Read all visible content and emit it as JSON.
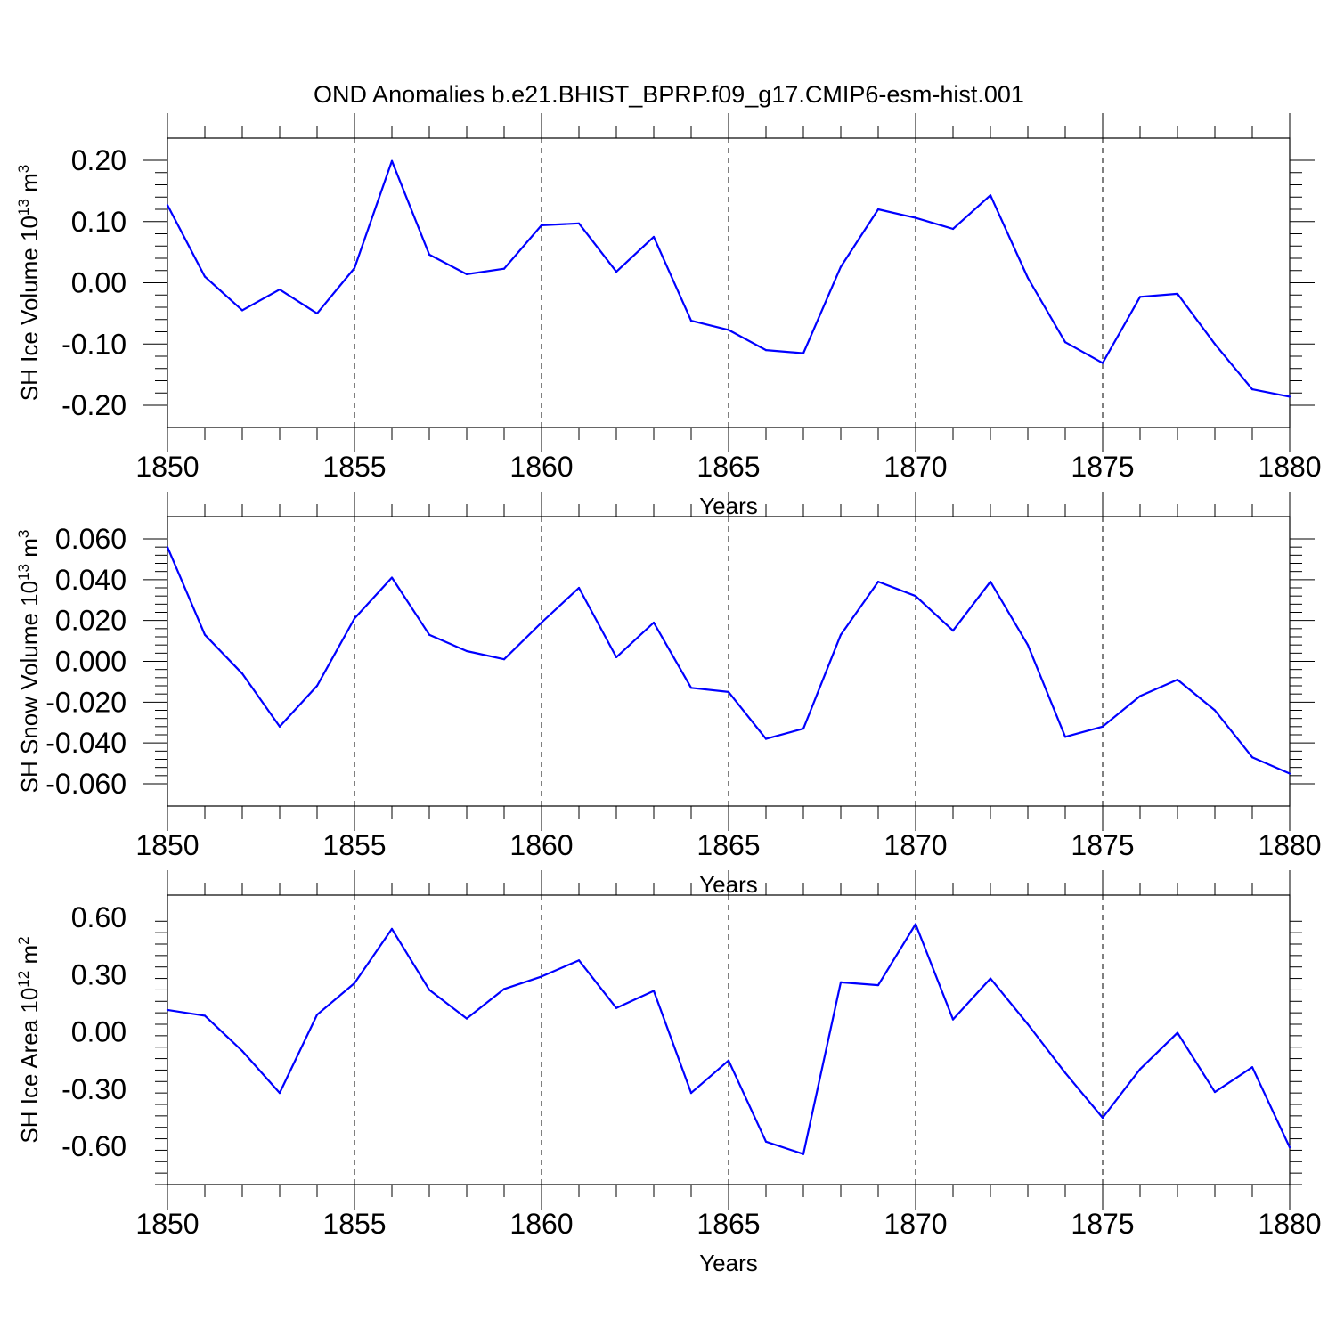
{
  "title": "OND Anomalies b.e21.BHIST_BPRP.f09_g17.CMIP6-esm-hist.001",
  "chart_data": [
    {
      "type": "line",
      "xlabel": "Years",
      "ylabel": {
        "text": "SH Ice Volume 10",
        "sup": "13",
        "unit": " m",
        "unit_sup": "3"
      },
      "xlim": [
        1850,
        1880
      ],
      "ylim": [
        -0.2,
        0.2
      ],
      "grid": "vertical dashed at x ticks",
      "yticks": [
        0.2,
        0.1,
        0.0,
        -0.1,
        -0.2
      ],
      "yticklabels": [
        "0.20",
        "0.10",
        "0.00",
        "-0.10",
        "-0.20"
      ],
      "xticks": [
        1850,
        1855,
        1860,
        1865,
        1870,
        1875,
        1880
      ],
      "xticklabels": [
        "1850",
        "1855",
        "1860",
        "1865",
        "1870",
        "1875",
        "1880"
      ],
      "line_color": "#0000ff",
      "x": [
        1850,
        1851,
        1852,
        1853,
        1854,
        1855,
        1856,
        1857,
        1858,
        1859,
        1860,
        1861,
        1862,
        1863,
        1864,
        1865,
        1866,
        1867,
        1868,
        1869,
        1870,
        1871,
        1872,
        1873,
        1874,
        1875,
        1876,
        1877,
        1878,
        1879,
        1880
      ],
      "y": [
        0.127,
        0.01,
        -0.045,
        -0.011,
        -0.05,
        0.024,
        0.199,
        0.046,
        0.014,
        0.023,
        0.094,
        0.097,
        0.018,
        0.075,
        -0.062,
        -0.077,
        -0.11,
        -0.115,
        0.026,
        0.12,
        0.106,
        0.088,
        0.143,
        0.008,
        -0.097,
        -0.131,
        -0.023,
        -0.018,
        -0.1,
        -0.174,
        -0.186
      ]
    },
    {
      "type": "line",
      "xlabel": "Years",
      "ylabel": {
        "text": "SH Snow Volume 10",
        "sup": "13",
        "unit": " m",
        "unit_sup": "3"
      },
      "xlim": [
        1850,
        1880
      ],
      "ylim": [
        -0.06,
        0.06
      ],
      "grid": "vertical dashed at x ticks",
      "yticks": [
        0.06,
        0.04,
        0.02,
        0.0,
        -0.02,
        -0.04,
        -0.06
      ],
      "yticklabels": [
        "0.060",
        "0.040",
        "0.020",
        "0.000",
        "-0.020",
        "-0.040",
        "-0.060"
      ],
      "xticks": [
        1850,
        1855,
        1860,
        1865,
        1870,
        1875,
        1880
      ],
      "xticklabels": [
        "1850",
        "1855",
        "1860",
        "1865",
        "1870",
        "1875",
        "1880"
      ],
      "line_color": "#0000ff",
      "x": [
        1850,
        1851,
        1852,
        1853,
        1854,
        1855,
        1856,
        1857,
        1858,
        1859,
        1860,
        1861,
        1862,
        1863,
        1864,
        1865,
        1866,
        1867,
        1868,
        1869,
        1870,
        1871,
        1872,
        1873,
        1874,
        1875,
        1876,
        1877,
        1878,
        1879,
        1880
      ],
      "y": [
        0.056,
        0.013,
        -0.006,
        -0.032,
        -0.012,
        0.021,
        0.041,
        0.013,
        0.005,
        0.001,
        0.019,
        0.036,
        0.002,
        0.019,
        -0.013,
        -0.015,
        -0.038,
        -0.033,
        0.013,
        0.039,
        0.032,
        0.015,
        0.039,
        0.008,
        -0.037,
        -0.032,
        -0.017,
        -0.009,
        -0.024,
        -0.047,
        -0.055
      ]
    },
    {
      "type": "line",
      "xlabel": "Years",
      "ylabel": {
        "text": "SH Ice Area 10",
        "sup": "12",
        "unit": " m",
        "unit_sup": "2"
      },
      "xlim": [
        1850,
        1880
      ],
      "ylim": [
        -0.8,
        0.6
      ],
      "grid": "vertical dashed at x ticks",
      "yticks": [
        0.6,
        0.3,
        0.0,
        -0.3,
        -0.6
      ],
      "yticklabels": [
        "0.60",
        "0.30",
        "0.00",
        "-0.30",
        "-0.60"
      ],
      "xticks": [
        1850,
        1855,
        1860,
        1865,
        1870,
        1875,
        1880
      ],
      "xticklabels": [
        "1850",
        "1855",
        "1860",
        "1865",
        "1870",
        "1875",
        "1880"
      ],
      "line_color": "#0000ff",
      "x": [
        1850,
        1851,
        1852,
        1853,
        1854,
        1855,
        1856,
        1857,
        1858,
        1859,
        1860,
        1861,
        1862,
        1863,
        1864,
        1865,
        1866,
        1867,
        1868,
        1869,
        1870,
        1871,
        1872,
        1873,
        1874,
        1875,
        1876,
        1877,
        1878,
        1879,
        1880
      ],
      "y": [
        0.115,
        0.085,
        -0.1,
        -0.32,
        0.09,
        0.255,
        0.54,
        0.22,
        0.07,
        0.225,
        0.29,
        0.375,
        0.125,
        0.215,
        -0.32,
        -0.15,
        -0.575,
        -0.64,
        0.26,
        0.245,
        0.565,
        0.065,
        0.28,
        0.04,
        -0.215,
        -0.45,
        -0.195,
        -0.005,
        -0.315,
        -0.185,
        -0.605
      ]
    }
  ]
}
